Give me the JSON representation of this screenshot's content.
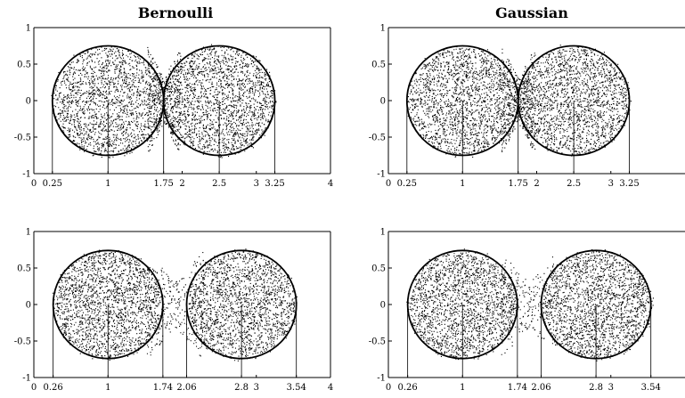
{
  "column_titles": [
    "Bernoulli",
    "Gaussian"
  ],
  "chart_data": [
    {
      "type": "scatter",
      "title": "Bernoulli",
      "xlim": [
        0,
        4
      ],
      "ylim": [
        -1,
        1
      ],
      "xticks": [
        "0",
        "0.25",
        "1",
        "1.75",
        "2",
        "2.5",
        "3",
        "3.25",
        "4"
      ],
      "xtick_values": [
        0,
        0.25,
        1,
        1.75,
        2,
        2.5,
        3,
        3.25,
        4
      ],
      "yticks": [
        "1",
        "0.5",
        "0",
        "-0.5",
        "-1"
      ],
      "ytick_values": [
        1,
        0.5,
        0,
        -0.5,
        -1
      ],
      "guide_lines_x": [
        0.25,
        1,
        1.75,
        2.5,
        3.25
      ],
      "circles": [
        {
          "cx": 1,
          "cy": 0,
          "r": 0.75
        },
        {
          "cx": 2.5,
          "cy": 0,
          "r": 0.75
        }
      ],
      "points": {
        "count": 4200,
        "seed": 11,
        "spread": 0.05,
        "gap_fill": 0.1
      }
    },
    {
      "type": "scatter",
      "title": "Gaussian",
      "xlim": [
        0,
        4
      ],
      "ylim": [
        -1,
        1
      ],
      "xticks": [
        "0",
        "0.25",
        "1",
        "1.75",
        "2",
        "2.5",
        "3",
        "3.25"
      ],
      "xtick_values": [
        0,
        0.25,
        1,
        1.75,
        2,
        2.5,
        3,
        3.25
      ],
      "yticks": [
        "1",
        "0.5",
        "0",
        "-0.5",
        "-1"
      ],
      "ytick_values": [
        1,
        0.5,
        0,
        -0.5,
        -1
      ],
      "guide_lines_x": [
        0.25,
        1,
        1.75,
        2.5,
        3.25
      ],
      "circles": [
        {
          "cx": 1,
          "cy": 0,
          "r": 0.75
        },
        {
          "cx": 2.5,
          "cy": 0,
          "r": 0.75
        }
      ],
      "points": {
        "count": 4200,
        "seed": 23,
        "spread": 0.05,
        "gap_fill": 0.1
      }
    },
    {
      "type": "scatter",
      "title": "",
      "xlim": [
        0,
        4
      ],
      "ylim": [
        -1,
        1
      ],
      "xticks": [
        "0",
        "0.26",
        "1",
        "1.74",
        "2.06",
        "2.8",
        "3",
        "3.54",
        "4"
      ],
      "xtick_values": [
        0,
        0.26,
        1,
        1.74,
        2.06,
        2.8,
        3,
        3.54,
        4
      ],
      "yticks": [
        "1",
        "0.5",
        "0",
        "-0.5",
        "-1"
      ],
      "ytick_values": [
        1,
        0.5,
        0,
        -0.5,
        -1
      ],
      "guide_lines_x": [
        0.26,
        1,
        1.74,
        2.06,
        2.8,
        3.54
      ],
      "circles": [
        {
          "cx": 1,
          "cy": 0,
          "r": 0.74
        },
        {
          "cx": 2.8,
          "cy": 0,
          "r": 0.74
        }
      ],
      "points": {
        "count": 4200,
        "seed": 37,
        "spread": 0.05,
        "gap_fill": 0.06
      }
    },
    {
      "type": "scatter",
      "title": "",
      "xlim": [
        0,
        4
      ],
      "ylim": [
        -1,
        1
      ],
      "xticks": [
        "0",
        "0.26",
        "1",
        "1.74",
        "2.06",
        "2.8",
        "3",
        "3.54"
      ],
      "xtick_values": [
        0,
        0.26,
        1,
        1.74,
        2.06,
        2.8,
        3,
        3.54
      ],
      "yticks": [
        "1",
        "0.5",
        "0",
        "-0.5",
        "-1"
      ],
      "ytick_values": [
        1,
        0.5,
        0,
        -0.5,
        -1
      ],
      "guide_lines_x": [
        0.26,
        1,
        1.74,
        2.06,
        2.8,
        3.54
      ],
      "circles": [
        {
          "cx": 1,
          "cy": 0,
          "r": 0.74
        },
        {
          "cx": 2.8,
          "cy": 0,
          "r": 0.74
        }
      ],
      "points": {
        "count": 4200,
        "seed": 41,
        "spread": 0.05,
        "gap_fill": 0.06
      }
    }
  ]
}
